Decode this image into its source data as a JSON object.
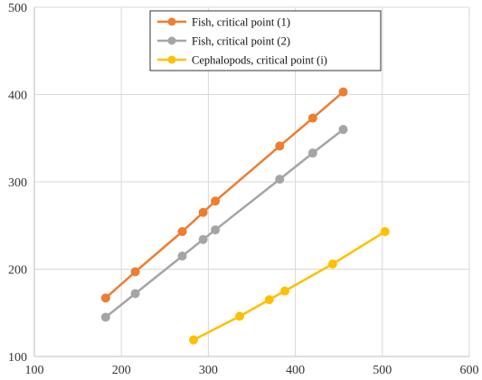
{
  "chart_data": {
    "type": "line",
    "title": "",
    "xlabel": "",
    "ylabel": "",
    "xlim": [
      100,
      600
    ],
    "ylim": [
      100,
      500
    ],
    "x_ticks": [
      100,
      200,
      300,
      400,
      500,
      600
    ],
    "y_ticks": [
      100,
      200,
      300,
      400,
      500
    ],
    "grid": true,
    "legend_position": "top-center",
    "series": [
      {
        "name": "Fish, critical point (1)",
        "color": "#ED7D31",
        "x": [
          182,
          216,
          270,
          294,
          308,
          382,
          420,
          455
        ],
        "y": [
          167,
          197,
          243,
          265,
          278,
          341,
          373,
          403
        ]
      },
      {
        "name": "Fish, critical point (2)",
        "color": "#A5A5A5",
        "x": [
          182,
          216,
          270,
          294,
          308,
          382,
          420,
          455
        ],
        "y": [
          145,
          172,
          215,
          234,
          245,
          303,
          333,
          360
        ]
      },
      {
        "name": "Cephalopods, critical point (i)",
        "color": "#FFC000",
        "x": [
          283,
          336,
          370,
          388,
          443,
          503
        ],
        "y": [
          119,
          146,
          165,
          175,
          206,
          243
        ]
      }
    ]
  }
}
